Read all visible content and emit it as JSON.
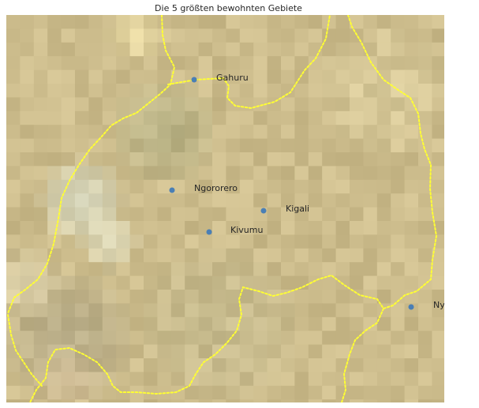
{
  "title": "Die 5 größten bewohnten Gebiete",
  "cities": [
    {
      "name": "Gahuru"
    },
    {
      "name": "Ngororero"
    },
    {
      "name": "Kigali"
    },
    {
      "name": "Kivumu"
    },
    {
      "name": "Nyakiziba"
    }
  ],
  "colors": {
    "marker": "#4a7fb5",
    "border": "#ffff33",
    "terrain_base": "#c9b98a"
  }
}
